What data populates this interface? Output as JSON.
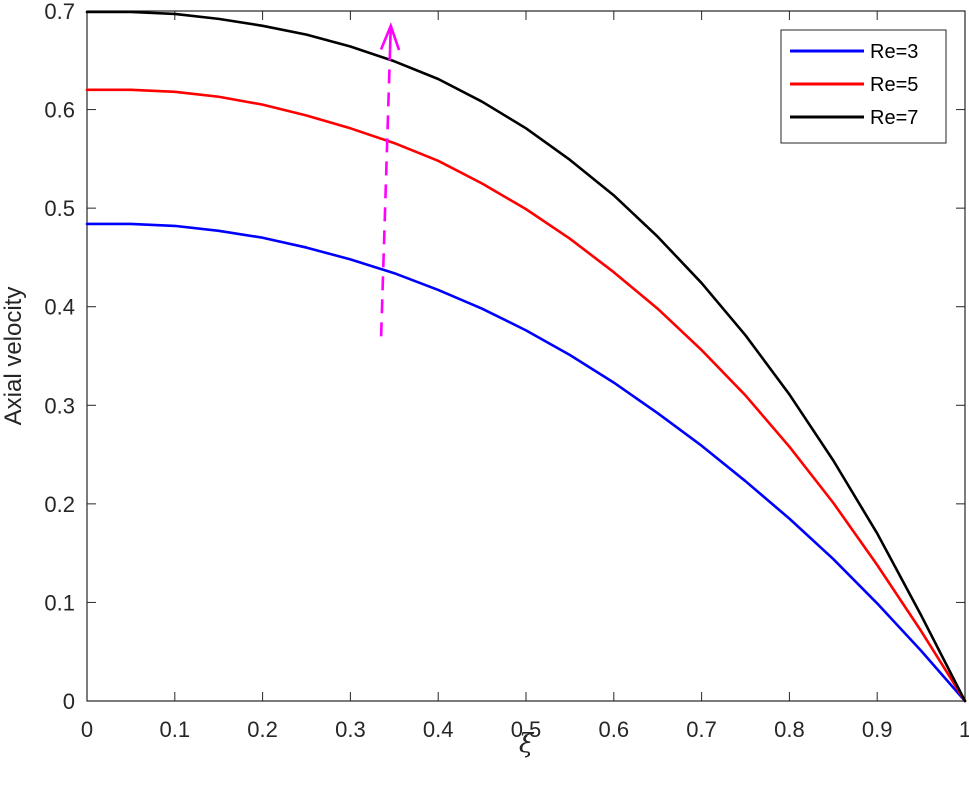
{
  "chart_data": {
    "type": "line",
    "title": "",
    "xlabel": "ξ",
    "ylabel": "Axial velocity",
    "xlim": [
      0,
      1
    ],
    "ylim": [
      0,
      0.7
    ],
    "xticks": [
      "0",
      "0.1",
      "0.2",
      "0.3",
      "0.4",
      "0.5",
      "0.6",
      "0.7",
      "0.8",
      "0.9",
      "1"
    ],
    "yticks": [
      "0",
      "0.1",
      "0.2",
      "0.3",
      "0.4",
      "0.5",
      "0.6",
      "0.7"
    ],
    "grid": false,
    "legend_position": "top-right",
    "x": [
      0,
      0.05,
      0.1,
      0.15,
      0.2,
      0.25,
      0.3,
      0.35,
      0.4,
      0.45,
      0.5,
      0.55,
      0.6,
      0.65,
      0.7,
      0.75,
      0.8,
      0.85,
      0.9,
      0.95,
      1.0
    ],
    "series": [
      {
        "name": "Re=3",
        "color": "#0000ff",
        "values": [
          0.484,
          0.484,
          0.482,
          0.477,
          0.47,
          0.46,
          0.448,
          0.434,
          0.417,
          0.398,
          0.376,
          0.351,
          0.323,
          0.292,
          0.259,
          0.223,
          0.185,
          0.144,
          0.099,
          0.051,
          0.0
        ]
      },
      {
        "name": "Re=5",
        "color": "#ff0000",
        "values": [
          0.62,
          0.62,
          0.618,
          0.613,
          0.605,
          0.594,
          0.581,
          0.566,
          0.548,
          0.525,
          0.499,
          0.469,
          0.435,
          0.398,
          0.356,
          0.31,
          0.258,
          0.201,
          0.138,
          0.071,
          0.0
        ]
      },
      {
        "name": "Re=7",
        "color": "#000000",
        "values": [
          0.699,
          0.699,
          0.697,
          0.692,
          0.685,
          0.676,
          0.664,
          0.649,
          0.631,
          0.608,
          0.581,
          0.549,
          0.513,
          0.471,
          0.424,
          0.371,
          0.311,
          0.244,
          0.17,
          0.087,
          0.0
        ]
      }
    ],
    "annotations": [
      {
        "type": "dashed-arrow",
        "color": "#ff00ff",
        "from": [
          0.335,
          0.37
        ],
        "to": [
          0.346,
          0.685
        ]
      }
    ]
  }
}
